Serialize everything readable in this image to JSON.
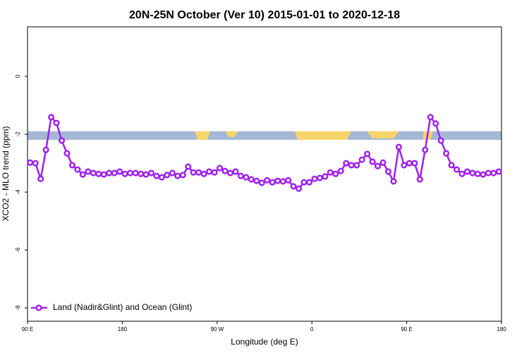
{
  "chart_data": {
    "type": "line",
    "title": "20N-25N October (Ver 10)   2015-01-01 to 2020-12-18",
    "xlabel": "Longitude (deg E)",
    "ylabel": "XCO2 - MLO trend (ppm)",
    "xlim": [
      90,
      540
    ],
    "ylim": [
      -8.46,
      1.71
    ],
    "xticks": [
      {
        "value": 90,
        "label": "90 E"
      },
      {
        "value": 180,
        "label": "180"
      },
      {
        "value": 270,
        "label": "90 W"
      },
      {
        "value": 360,
        "label": "0"
      },
      {
        "value": 450,
        "label": "90 E"
      },
      {
        "value": 540,
        "label": "180"
      }
    ],
    "yticks": [
      0,
      -2,
      -4,
      -6,
      -8
    ],
    "legend": "bottom-left",
    "x": [
      92.5,
      97.5,
      102.5,
      107.5,
      112.5,
      117.5,
      122.5,
      127.5,
      132.5,
      137.5,
      142.5,
      147.5,
      152.5,
      157.5,
      162.5,
      167.5,
      172.5,
      177.5,
      182.5,
      187.5,
      192.5,
      197.5,
      202.5,
      207.5,
      212.5,
      217.5,
      222.5,
      227.5,
      232.5,
      237.5,
      242.5,
      247.5,
      252.5,
      257.5,
      262.5,
      267.5,
      272.5,
      277.5,
      282.5,
      287.5,
      292.5,
      297.5,
      302.5,
      307.5,
      312.5,
      317.5,
      322.5,
      327.5,
      332.5,
      337.5,
      342.5,
      347.5,
      352.5,
      357.5,
      362.5,
      367.5,
      372.5,
      377.5,
      382.5,
      387.5,
      392.5,
      397.5,
      402.5,
      407.5,
      412.5,
      417.5,
      422.5,
      427.5,
      432.5,
      437.5,
      442.5,
      447.5,
      452.5,
      457.5,
      462.5,
      467.5,
      472.5,
      477.5,
      482.5,
      487.5,
      492.5,
      497.5,
      502.5,
      507.5,
      512.5,
      517.5,
      522.5,
      527.5,
      532.5,
      537.5
    ],
    "series": [
      {
        "name": "Land (Nadir&Glint) and Ocean (Glint)",
        "color": "#a020f0",
        "values": [
          -2.98,
          -3.0,
          -3.54,
          -2.54,
          -1.41,
          -1.61,
          -2.22,
          -2.66,
          -3.07,
          -3.22,
          -3.39,
          -3.29,
          -3.34,
          -3.37,
          -3.39,
          -3.34,
          -3.34,
          -3.29,
          -3.37,
          -3.34,
          -3.34,
          -3.37,
          -3.39,
          -3.34,
          -3.44,
          -3.49,
          -3.41,
          -3.34,
          -3.44,
          -3.41,
          -3.12,
          -3.32,
          -3.32,
          -3.37,
          -3.29,
          -3.32,
          -3.17,
          -3.27,
          -3.34,
          -3.29,
          -3.44,
          -3.49,
          -3.56,
          -3.61,
          -3.68,
          -3.59,
          -3.66,
          -3.61,
          -3.63,
          -3.59,
          -3.8,
          -3.88,
          -3.66,
          -3.66,
          -3.54,
          -3.51,
          -3.46,
          -3.32,
          -3.37,
          -3.27,
          -3.0,
          -3.07,
          -3.07,
          -2.88,
          -2.68,
          -2.95,
          -3.1,
          -2.98,
          -3.29,
          -3.63,
          -2.44,
          -3.07,
          -3.0,
          -3.0,
          -3.56,
          -2.54,
          -1.41,
          -1.63,
          -2.22,
          -2.66,
          -3.07,
          -3.22,
          -3.37,
          -3.29,
          -3.34,
          -3.37,
          -3.39,
          -3.34,
          -3.34,
          -3.29
        ]
      }
    ]
  }
}
